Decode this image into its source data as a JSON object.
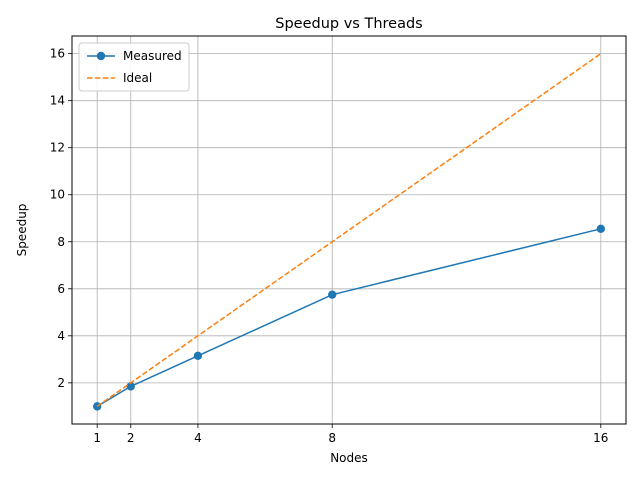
{
  "chart_data": {
    "type": "line",
    "title": "Speedup vs Threads",
    "xlabel": "Nodes",
    "ylabel": "Speedup",
    "x": [
      1,
      2,
      4,
      8,
      16
    ],
    "xticks": [
      "1",
      "2",
      "4",
      "8",
      "16"
    ],
    "yticks": [
      "2",
      "4",
      "6",
      "8",
      "10",
      "12",
      "14",
      "16"
    ],
    "xlim": [
      0.25,
      16.75
    ],
    "ylim": [
      0.25,
      16.75
    ],
    "grid": true,
    "legend_position": "top-left",
    "series": [
      {
        "name": "Measured",
        "values": [
          1.0,
          1.85,
          3.15,
          5.75,
          8.55
        ],
        "color": "#1f77b4",
        "style": "solid",
        "marker": "circle"
      },
      {
        "name": "Ideal",
        "values": [
          1,
          2,
          4,
          8,
          16
        ],
        "color": "#ff7f0e",
        "style": "dashed",
        "marker": "none"
      }
    ]
  }
}
